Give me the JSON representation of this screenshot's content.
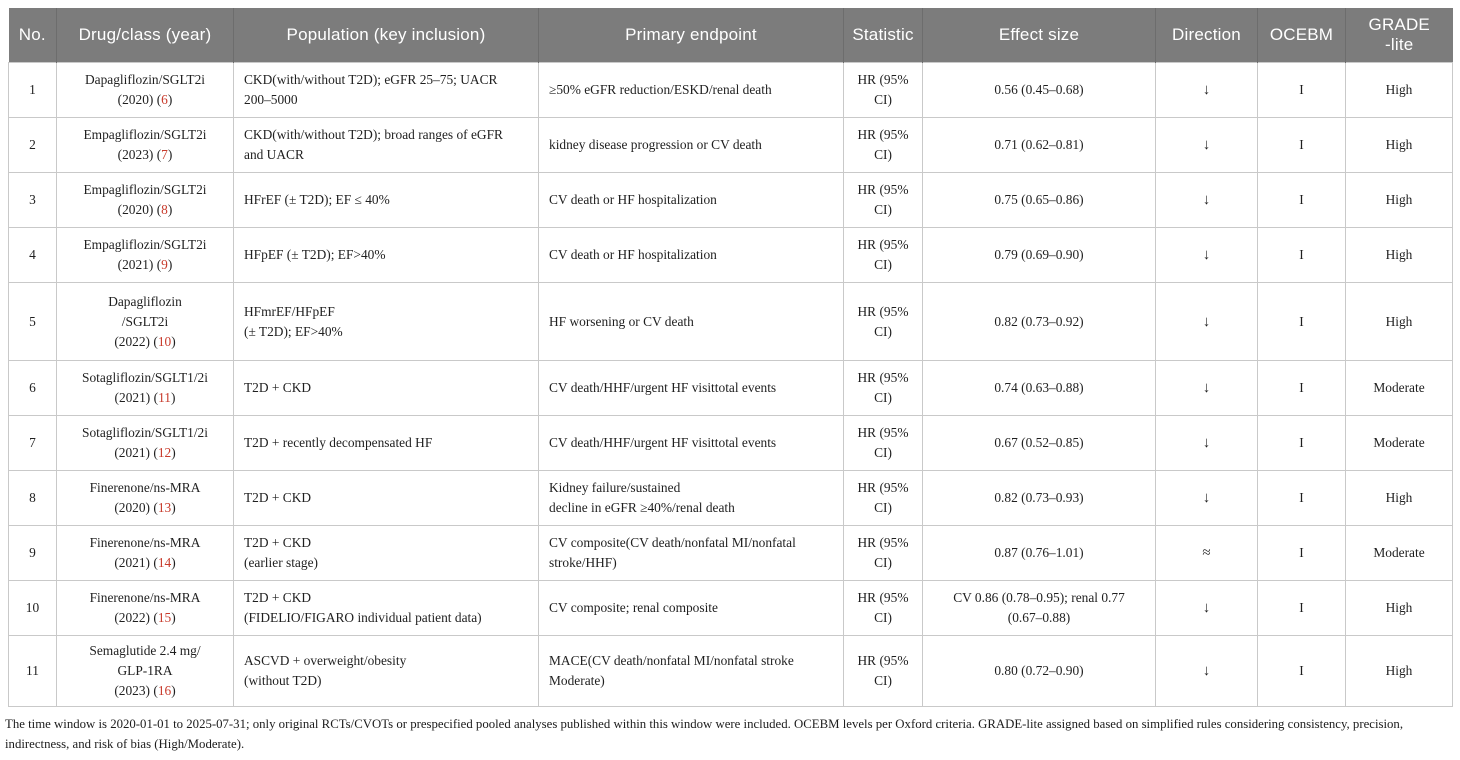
{
  "colors": {
    "header_bg": "#7c7c7c",
    "header_sep": "#6d6d6d",
    "header_text": "#ffffff",
    "body_text": "#1f1f1f",
    "citation": "#c83b2c",
    "grid": "#c9c9c9"
  },
  "citation_format": {
    "open": " (",
    "close": ")"
  },
  "table": {
    "columns": [
      {
        "key": "no",
        "label": "No."
      },
      {
        "key": "drug",
        "label": "Drug/class (year)"
      },
      {
        "key": "population",
        "label": "Population (key inclusion)"
      },
      {
        "key": "endpoint",
        "label": "Primary endpoint"
      },
      {
        "key": "statistic",
        "label": "Statistic"
      },
      {
        "key": "effect",
        "label": "Effect size"
      },
      {
        "key": "direction",
        "label": "Direction"
      },
      {
        "key": "ocebm",
        "label": "OCEBM"
      },
      {
        "key": "grade",
        "label": "GRADE\n-lite"
      }
    ],
    "rows": [
      {
        "no": "1",
        "drug_lines": [
          "Dapagliflozin/SGLT2i"
        ],
        "year": "(2020)",
        "ref": "6",
        "population_lines": [
          "CKD(with/without T2D); eGFR 25–75; UACR",
          "200–5000"
        ],
        "endpoint_lines": [
          "≥50% eGFR reduction/ESKD/renal death"
        ],
        "stat_lines": [
          "HR (95%",
          "CI)"
        ],
        "effect_lines": [
          "0.56 (0.45–0.68)"
        ],
        "direction": "↓",
        "ocebm": "I",
        "grade": "High"
      },
      {
        "no": "2",
        "drug_lines": [
          "Empagliflozin/SGLT2i"
        ],
        "year": "(2023)",
        "ref": "7",
        "population_lines": [
          "CKD(with/without T2D); broad ranges of eGFR",
          "and UACR"
        ],
        "endpoint_lines": [
          "kidney disease progression or CV death"
        ],
        "stat_lines": [
          "HR (95%",
          "CI)"
        ],
        "effect_lines": [
          "0.71 (0.62–0.81)"
        ],
        "direction": "↓",
        "ocebm": "I",
        "grade": "High"
      },
      {
        "no": "3",
        "drug_lines": [
          "Empagliflozin/SGLT2i"
        ],
        "year": "(2020)",
        "ref": "8",
        "population_lines": [
          "HFrEF (± T2D); EF ≤ 40%"
        ],
        "endpoint_lines": [
          "CV death or HF hospitalization"
        ],
        "stat_lines": [
          "HR (95%",
          "CI)"
        ],
        "effect_lines": [
          "0.75 (0.65–0.86)"
        ],
        "direction": "↓",
        "ocebm": "I",
        "grade": "High"
      },
      {
        "no": "4",
        "drug_lines": [
          "Empagliflozin/SGLT2i"
        ],
        "year": "(2021)",
        "ref": "9",
        "population_lines": [
          "HFpEF (± T2D); EF>40%"
        ],
        "endpoint_lines": [
          "CV death or HF hospitalization"
        ],
        "stat_lines": [
          "HR (95%",
          "CI)"
        ],
        "effect_lines": [
          "0.79 (0.69–0.90)"
        ],
        "direction": "↓",
        "ocebm": "I",
        "grade": "High"
      },
      {
        "no": "5",
        "drug_lines": [
          "Dapagliflozin",
          "/SGLT2i"
        ],
        "year": "(2022)",
        "ref": "10",
        "population_lines": [
          "HFmrEF/HFpEF",
          "(± T2D); EF>40%"
        ],
        "endpoint_lines": [
          "HF worsening or CV death"
        ],
        "stat_lines": [
          "HR (95%",
          "CI)"
        ],
        "effect_lines": [
          "0.82 (0.73–0.92)"
        ],
        "direction": "↓",
        "ocebm": "I",
        "grade": "High"
      },
      {
        "no": "6",
        "drug_lines": [
          "Sotagliflozin/SGLT1/2i"
        ],
        "year": "(2021)",
        "ref": "11",
        "population_lines": [
          "T2D + CKD"
        ],
        "endpoint_lines": [
          "CV death/HHF/urgent HF visittotal events"
        ],
        "stat_lines": [
          "HR (95%",
          "CI)"
        ],
        "effect_lines": [
          "0.74 (0.63–0.88)"
        ],
        "direction": "↓",
        "ocebm": "I",
        "grade": "Moderate"
      },
      {
        "no": "7",
        "drug_lines": [
          "Sotagliflozin/SGLT1/2i"
        ],
        "year": "(2021)",
        "ref": "12",
        "population_lines": [
          "T2D + recently decompensated HF"
        ],
        "endpoint_lines": [
          "CV death/HHF/urgent HF visittotal events"
        ],
        "stat_lines": [
          "HR (95%",
          "CI)"
        ],
        "effect_lines": [
          "0.67 (0.52–0.85)"
        ],
        "direction": "↓",
        "ocebm": "I",
        "grade": "Moderate"
      },
      {
        "no": "8",
        "drug_lines": [
          "Finerenone/ns-MRA"
        ],
        "year": "(2020)",
        "ref": "13",
        "population_lines": [
          "T2D + CKD"
        ],
        "endpoint_lines": [
          "Kidney failure/sustained",
          "decline in eGFR ≥40%/renal death"
        ],
        "stat_lines": [
          "HR (95%",
          "CI)"
        ],
        "effect_lines": [
          "0.82 (0.73–0.93)"
        ],
        "direction": "↓",
        "ocebm": "I",
        "grade": "High"
      },
      {
        "no": "9",
        "drug_lines": [
          "Finerenone/ns-MRA"
        ],
        "year": "(2021)",
        "ref": "14",
        "population_lines": [
          "T2D + CKD",
          "(earlier stage)"
        ],
        "endpoint_lines": [
          "CV composite(CV death/nonfatal MI/nonfatal",
          "stroke/HHF)"
        ],
        "stat_lines": [
          "HR (95%",
          "CI)"
        ],
        "effect_lines": [
          "0.87 (0.76–1.01)"
        ],
        "direction": "≈",
        "ocebm": "I",
        "grade": "Moderate"
      },
      {
        "no": "10",
        "drug_lines": [
          "Finerenone/ns-MRA"
        ],
        "year": "(2022)",
        "ref": "15",
        "population_lines": [
          "T2D + CKD",
          "(FIDELIO/FIGARO individual patient data)"
        ],
        "endpoint_lines": [
          "CV composite; renal composite"
        ],
        "stat_lines": [
          "HR (95%",
          "CI)"
        ],
        "effect_lines": [
          "CV 0.86 (0.78–0.95); renal 0.77",
          "(0.67–0.88)"
        ],
        "direction": "↓",
        "ocebm": "I",
        "grade": "High"
      },
      {
        "no": "11",
        "drug_lines": [
          "Semaglutide 2.4 mg/",
          "GLP-1RA"
        ],
        "year": "(2023)",
        "ref": "16",
        "population_lines": [
          "ASCVD + overweight/obesity",
          "(without T2D)"
        ],
        "endpoint_lines": [
          "MACE(CV death/nonfatal MI/nonfatal stroke",
          "Moderate)"
        ],
        "stat_lines": [
          "HR (95%",
          "CI)"
        ],
        "effect_lines": [
          "0.80 (0.72–0.90)"
        ],
        "direction": "↓",
        "ocebm": "I",
        "grade": "High"
      }
    ]
  },
  "footnote": "The time window is 2020-01-01 to 2025-07-31; only original RCTs/CVOTs or prespecified pooled analyses published within this window were included. OCEBM levels per Oxford criteria. GRADE-lite assigned based on simplified rules considering consistency, precision, indirectness, and risk of bias (High/Moderate)."
}
